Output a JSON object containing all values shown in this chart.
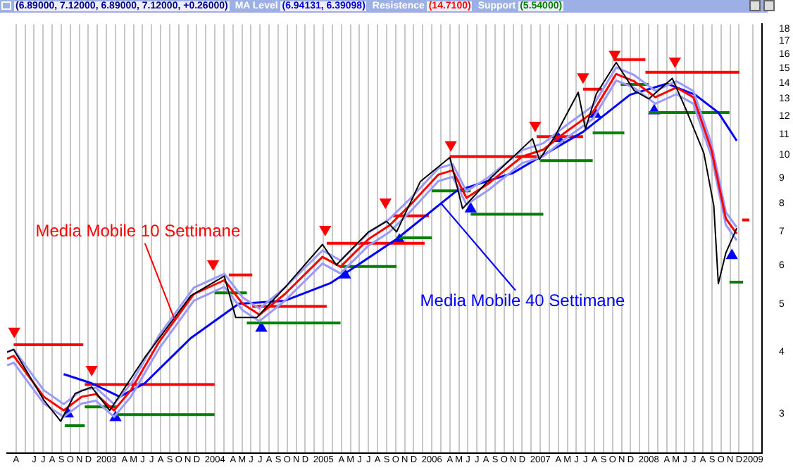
{
  "chart_data": {
    "type": "line",
    "log": "y",
    "grid": "x",
    "marker": "none",
    "xlim": [
      "2002-03-15",
      "2009-03-01"
    ],
    "ylim": [
      2.5,
      18.4
    ],
    "yticks": [
      3,
      4,
      5,
      6,
      7,
      8,
      9,
      10,
      11,
      12,
      13,
      14,
      15,
      16,
      17,
      18
    ],
    "xticks": [
      {
        "value": "2002-04-15",
        "label": "A"
      },
      {
        "value": "2002-05-15",
        "label": null
      },
      {
        "value": "2002-06-15",
        "label": "J"
      },
      {
        "value": "2002-07-15",
        "label": "J"
      },
      {
        "value": "2002-08-15",
        "label": "A"
      },
      {
        "value": "2002-09-15",
        "label": "S"
      },
      {
        "value": "2002-10-15",
        "label": "O"
      },
      {
        "value": "2002-11-15",
        "label": "N"
      },
      {
        "value": "2002-12-15",
        "label": "D"
      },
      {
        "value": "2003-01-15",
        "label": null
      },
      {
        "value": "2003-02-15",
        "label": "2003"
      },
      {
        "value": "2003-03-15",
        "label": null
      },
      {
        "value": "2003-04-15",
        "label": "A"
      },
      {
        "value": "2003-05-15",
        "label": "M"
      },
      {
        "value": "2003-06-15",
        "label": "J"
      },
      {
        "value": "2003-07-15",
        "label": "J"
      },
      {
        "value": "2003-08-15",
        "label": "A"
      },
      {
        "value": "2003-09-15",
        "label": "S"
      },
      {
        "value": "2003-10-15",
        "label": "O"
      },
      {
        "value": "2003-11-15",
        "label": "N"
      },
      {
        "value": "2003-12-15",
        "label": "D"
      },
      {
        "value": "2004-01-15",
        "label": null
      },
      {
        "value": "2004-02-15",
        "label": "2004"
      },
      {
        "value": "2004-03-15",
        "label": null
      },
      {
        "value": "2004-04-15",
        "label": "A"
      },
      {
        "value": "2004-05-15",
        "label": "M"
      },
      {
        "value": "2004-06-15",
        "label": "J"
      },
      {
        "value": "2004-07-15",
        "label": "J"
      },
      {
        "value": "2004-08-15",
        "label": "A"
      },
      {
        "value": "2004-09-15",
        "label": "S"
      },
      {
        "value": "2004-10-15",
        "label": "O"
      },
      {
        "value": "2004-11-15",
        "label": "N"
      },
      {
        "value": "2004-12-15",
        "label": "D"
      },
      {
        "value": "2005-01-15",
        "label": null
      },
      {
        "value": "2005-02-15",
        "label": "2005"
      },
      {
        "value": "2005-03-15",
        "label": null
      },
      {
        "value": "2005-04-15",
        "label": "A"
      },
      {
        "value": "2005-05-15",
        "label": "M"
      },
      {
        "value": "2005-06-15",
        "label": "J"
      },
      {
        "value": "2005-07-15",
        "label": "J"
      },
      {
        "value": "2005-08-15",
        "label": "A"
      },
      {
        "value": "2005-09-15",
        "label": "S"
      },
      {
        "value": "2005-10-15",
        "label": "O"
      },
      {
        "value": "2005-11-15",
        "label": "N"
      },
      {
        "value": "2005-12-15",
        "label": "D"
      },
      {
        "value": "2006-01-15",
        "label": null
      },
      {
        "value": "2006-02-15",
        "label": "2006"
      },
      {
        "value": "2006-03-15",
        "label": null
      },
      {
        "value": "2006-04-15",
        "label": "A"
      },
      {
        "value": "2006-05-15",
        "label": "M"
      },
      {
        "value": "2006-06-15",
        "label": "J"
      },
      {
        "value": "2006-07-15",
        "label": "J"
      },
      {
        "value": "2006-08-15",
        "label": "A"
      },
      {
        "value": "2006-09-15",
        "label": "S"
      },
      {
        "value": "2006-10-15",
        "label": "O"
      },
      {
        "value": "2006-11-15",
        "label": "N"
      },
      {
        "value": "2006-12-15",
        "label": "D"
      },
      {
        "value": "2007-01-15",
        "label": null
      },
      {
        "value": "2007-02-15",
        "label": "2007"
      },
      {
        "value": "2007-03-15",
        "label": null
      },
      {
        "value": "2007-04-15",
        "label": "A"
      },
      {
        "value": "2007-05-15",
        "label": "M"
      },
      {
        "value": "2007-06-15",
        "label": "J"
      },
      {
        "value": "2007-07-15",
        "label": "J"
      },
      {
        "value": "2007-08-15",
        "label": "A"
      },
      {
        "value": "2007-09-15",
        "label": "S"
      },
      {
        "value": "2007-10-15",
        "label": "O"
      },
      {
        "value": "2007-11-15",
        "label": "N"
      },
      {
        "value": "2007-12-15",
        "label": "D"
      },
      {
        "value": "2008-01-15",
        "label": null
      },
      {
        "value": "2008-02-15",
        "label": "2008"
      },
      {
        "value": "2008-03-15",
        "label": null
      },
      {
        "value": "2008-04-15",
        "label": "A"
      },
      {
        "value": "2008-05-15",
        "label": "M"
      },
      {
        "value": "2008-06-15",
        "label": "J"
      },
      {
        "value": "2008-07-15",
        "label": "J"
      },
      {
        "value": "2008-08-15",
        "label": "A"
      },
      {
        "value": "2008-09-15",
        "label": "S"
      },
      {
        "value": "2008-10-15",
        "label": "O"
      },
      {
        "value": "2008-11-15",
        "label": "N"
      },
      {
        "value": "2008-12-15",
        "label": "D"
      },
      {
        "value": "2009-02-01",
        "label": "2009"
      }
    ],
    "annotations": [
      "(6.89000, 7.12000, 6.89000, 7.12000, +0.26000)",
      "MA Level (6.94131, 6.39098)",
      "Resistence (14.7100)",
      "Support (5.54000)",
      {
        "text": "Media Mobile 10 Settimane",
        "x": "2003-10-01",
        "y": 4.66
      },
      {
        "text": "Media Mobile 40 Settimane",
        "x": "2006-03-15",
        "y": 8.0
      }
    ],
    "series": [
      {
        "color": "#000000",
        "x": [
          "2002-03-15",
          "2002-04-07",
          "2002-07-17",
          "2002-09-13",
          "2002-11-01",
          "2002-12-26",
          "2003-02-26",
          "2003-06-22",
          "2003-11-25",
          "2004-03-16",
          "2004-04-24",
          "2004-07-04",
          "2004-10-07",
          "2005-02-12",
          "2005-03-28",
          "2005-07-15",
          "2005-09-15",
          "2005-10-18",
          "2006-01-07",
          "2006-04-15",
          "2006-05-27",
          "2006-09-01",
          "2007-01-19",
          "2007-02-12",
          "2007-04-03",
          "2007-06-21",
          "2007-07-15",
          "2007-08-21",
          "2007-10-27",
          "2007-12-27",
          "2008-02-15",
          "2008-05-03",
          "2008-06-18",
          "2008-08-18",
          "2008-09-21",
          "2008-10-06",
          "2008-11-01",
          "2008-12-07"
        ],
        "values": [
          4.0,
          4.05,
          3.2,
          2.9,
          3.3,
          3.4,
          3.05,
          3.9,
          5.2,
          5.7,
          4.7,
          4.7,
          5.4,
          6.6,
          6.0,
          7.0,
          7.35,
          7.0,
          8.85,
          9.9,
          7.8,
          9.0,
          10.8,
          9.8,
          10.9,
          13.4,
          11.3,
          13.3,
          15.4,
          13.5,
          13.0,
          14.3,
          12.4,
          10.1,
          7.9,
          5.5,
          6.35,
          7.12
        ]
      },
      {
        "color": "#ff0000",
        "x": [
          "2002-03-15",
          "2002-04-07",
          "2002-07-17",
          "2002-09-23",
          "2002-11-23",
          "2003-01-10",
          "2003-03-10",
          "2003-05-06",
          "2003-08-09",
          "2003-12-05",
          "2004-03-16",
          "2004-05-17",
          "2004-07-13",
          "2004-10-07",
          "2005-02-12",
          "2005-04-12",
          "2005-07-15",
          "2005-09-24",
          "2005-12-04",
          "2006-03-07",
          "2006-04-24",
          "2006-06-10",
          "2006-08-20",
          "2006-12-15",
          "2007-02-25",
          "2007-05-06",
          "2007-08-09",
          "2007-10-27",
          "2007-12-27",
          "2008-03-07",
          "2008-05-17",
          "2008-07-13",
          "2008-09-13",
          "2008-11-01",
          "2008-12-07"
        ],
        "values": [
          3.88,
          3.93,
          3.25,
          3.05,
          3.25,
          3.29,
          3.05,
          3.35,
          4.19,
          5.24,
          5.59,
          5.01,
          4.76,
          5.24,
          6.23,
          5.95,
          6.77,
          7.21,
          7.94,
          9.14,
          9.32,
          8.2,
          8.74,
          9.94,
          10.26,
          11.1,
          12.2,
          14.6,
          14.1,
          13.1,
          13.7,
          13.1,
          10.26,
          7.45,
          6.94
        ]
      },
      {
        "color": "#9999ff",
        "x": [
          "2002-03-15",
          "2002-04-07",
          "2002-07-17",
          "2002-09-23",
          "2002-11-23",
          "2003-01-10",
          "2003-03-10",
          "2003-05-06",
          "2003-08-09",
          "2003-12-05",
          "2004-03-16",
          "2004-05-17",
          "2004-07-13",
          "2004-10-07",
          "2005-02-12",
          "2005-04-12",
          "2005-07-15",
          "2005-09-24",
          "2005-12-04",
          "2006-03-07",
          "2006-04-24",
          "2006-06-10",
          "2006-08-20",
          "2006-12-15",
          "2007-02-25",
          "2007-05-06",
          "2007-08-09",
          "2007-10-27",
          "2007-12-27",
          "2008-03-07",
          "2008-05-17",
          "2008-07-13",
          "2008-09-13",
          "2008-11-01",
          "2008-12-07"
        ],
        "values": [
          4.0,
          4.05,
          3.35,
          3.14,
          3.35,
          3.39,
          3.14,
          3.45,
          4.32,
          5.4,
          5.76,
          5.16,
          4.9,
          5.4,
          6.42,
          6.13,
          6.97,
          7.43,
          8.18,
          9.41,
          9.6,
          8.45,
          9.0,
          10.24,
          10.57,
          11.43,
          12.57,
          15.04,
          14.52,
          13.49,
          14.11,
          13.49,
          10.57,
          7.67,
          7.15
        ]
      },
      {
        "color": "#9999ff",
        "x": [
          "2002-03-15",
          "2002-04-07",
          "2002-07-17",
          "2002-09-23",
          "2002-11-23",
          "2003-01-10",
          "2003-03-10",
          "2003-05-06",
          "2003-08-09",
          "2003-12-05",
          "2004-03-16",
          "2004-05-17",
          "2004-07-13",
          "2004-10-07",
          "2005-02-12",
          "2005-04-12",
          "2005-07-15",
          "2005-09-24",
          "2005-12-04",
          "2006-03-07",
          "2006-04-24",
          "2006-06-10",
          "2006-08-20",
          "2006-12-15",
          "2007-02-25",
          "2007-05-06",
          "2007-08-09",
          "2007-10-27",
          "2007-12-27",
          "2008-03-07",
          "2008-05-17",
          "2008-07-13",
          "2008-09-13",
          "2008-11-01",
          "2008-12-07"
        ],
        "values": [
          3.76,
          3.81,
          3.15,
          2.96,
          3.15,
          3.19,
          2.96,
          3.25,
          4.06,
          5.08,
          5.42,
          4.86,
          4.62,
          5.08,
          6.04,
          5.77,
          6.57,
          6.99,
          7.7,
          8.87,
          9.04,
          7.95,
          8.48,
          9.64,
          9.95,
          10.77,
          11.83,
          14.16,
          13.68,
          12.71,
          13.29,
          12.71,
          9.95,
          7.23,
          6.73
        ]
      },
      {
        "color": "#0000ff",
        "x": [
          "2002-09-23",
          "2002-12-26",
          "2003-03-29",
          "2003-06-22",
          "2003-11-25",
          "2004-05-04",
          "2004-10-07",
          "2005-03-10",
          "2005-10-18",
          "2006-05-07",
          "2006-11-13",
          "2007-07-07",
          "2007-12-13",
          "2008-04-15",
          "2008-07-19",
          "2008-10-06",
          "2008-12-07"
        ],
        "values": [
          3.61,
          3.46,
          3.25,
          3.46,
          4.27,
          5.01,
          5.08,
          5.52,
          6.77,
          8.47,
          9.2,
          11.15,
          13.25,
          13.95,
          13.25,
          12.2,
          10.7
        ]
      },
      {
        "color": "#ff0000",
        "x": [
          "2002-04-07",
          "2002-11-28"
        ],
        "values": [
          4.14,
          4.14
        ]
      },
      {
        "color": "#ff0000",
        "x": [
          "2002-12-03",
          "2004-02-14"
        ],
        "values": [
          3.44,
          3.44
        ]
      },
      {
        "color": "#ff0000",
        "x": [
          "2004-04-01",
          "2004-06-19"
        ],
        "values": [
          5.73,
          5.73
        ]
      },
      {
        "color": "#ff0000",
        "x": [
          "2004-06-19",
          "2005-02-26"
        ],
        "values": [
          4.95,
          4.95
        ]
      },
      {
        "color": "#ff0000",
        "x": [
          "2005-02-26",
          "2006-01-21"
        ],
        "values": [
          6.64,
          6.64
        ]
      },
      {
        "color": "#ff0000",
        "x": [
          "2005-10-04",
          "2006-02-05"
        ],
        "values": [
          7.54,
          7.54
        ]
      },
      {
        "color": "#ff0000",
        "x": [
          "2006-04-15",
          "2007-02-03"
        ],
        "values": [
          9.94,
          9.94
        ]
      },
      {
        "color": "#ff0000",
        "x": [
          "2007-02-03",
          "2007-07-07"
        ],
        "values": [
          10.9,
          10.9
        ]
      },
      {
        "color": "#ff0000",
        "x": [
          "2007-07-07",
          "2007-09-10"
        ],
        "values": [
          13.6,
          13.6
        ]
      },
      {
        "color": "#ff0000",
        "x": [
          "2007-10-18",
          "2008-02-04"
        ],
        "values": [
          15.6,
          15.6
        ]
      },
      {
        "color": "#ff0000",
        "x": [
          "2008-02-04",
          "2008-12-16"
        ],
        "values": [
          14.71,
          14.71
        ]
      },
      {
        "color": "#ff0000",
        "x": [
          "2008-12-25",
          "2009-01-19"
        ],
        "values": [
          7.4,
          7.4
        ]
      },
      {
        "color": "#008000",
        "x": [
          "2002-09-27",
          "2002-12-03"
        ],
        "values": [
          2.84,
          2.84
        ]
      },
      {
        "color": "#008000",
        "x": [
          "2002-12-03",
          "2003-03-19"
        ],
        "values": [
          3.1,
          3.1
        ]
      },
      {
        "color": "#008000",
        "x": [
          "2003-03-19",
          "2004-02-14"
        ],
        "values": [
          2.99,
          2.99
        ]
      },
      {
        "color": "#008000",
        "x": [
          "2004-02-14",
          "2004-06-01"
        ],
        "values": [
          5.27,
          5.27
        ]
      },
      {
        "color": "#008000",
        "x": [
          "2004-06-01",
          "2005-04-12"
        ],
        "values": [
          4.58,
          4.58
        ]
      },
      {
        "color": "#008000",
        "x": [
          "2005-04-12",
          "2005-10-18"
        ],
        "values": [
          5.96,
          5.96
        ]
      },
      {
        "color": "#008000",
        "x": [
          "2005-10-18",
          "2006-02-15"
        ],
        "values": [
          6.81,
          6.81
        ]
      },
      {
        "color": "#008000",
        "x": [
          "2006-02-15",
          "2006-06-24"
        ],
        "values": [
          8.47,
          8.47
        ]
      },
      {
        "color": "#008000",
        "x": [
          "2006-06-24",
          "2007-02-25"
        ],
        "values": [
          7.6,
          7.6
        ]
      },
      {
        "color": "#008000",
        "x": [
          "2007-02-15",
          "2007-08-09"
        ],
        "values": [
          9.75,
          9.75
        ]
      },
      {
        "color": "#008000",
        "x": [
          "2007-08-09",
          "2007-11-24"
        ],
        "values": [
          11.1,
          11.1
        ]
      },
      {
        "color": "#008000",
        "x": [
          "2007-11-12",
          "2008-02-15"
        ],
        "values": [
          13.9,
          13.9
        ]
      },
      {
        "color": "#008000",
        "x": [
          "2008-02-15",
          "2008-11-13"
        ],
        "values": [
          12.2,
          12.2
        ]
      },
      {
        "color": "#008000",
        "x": [
          "2008-11-13",
          "2008-12-28"
        ],
        "values": [
          5.54,
          5.54
        ]
      },
      {
        "type": "scatter",
        "marker": "triangle",
        "color": "#ff0000",
        "x": [
          "2002-04-09",
          "2002-12-26",
          "2004-02-09",
          "2005-02-21",
          "2005-09-11",
          "2006-04-18",
          "2007-01-28",
          "2007-07-07",
          "2007-10-22",
          "2008-05-12"
        ],
        "values": [
          4.41,
          3.69,
          6.03,
          7.08,
          8.04,
          10.5,
          11.5,
          14.4,
          16.0,
          15.5
        ]
      },
      {
        "type": "scatter",
        "marker": "triangle",
        "color": "#0000ff",
        "x": [
          "2002-10-07",
          "2003-03-15",
          "2004-07-19",
          "2005-04-27",
          "2005-10-27",
          "2006-06-24",
          "2007-04-15",
          "2007-08-18",
          "2008-03-03",
          "2008-11-21"
        ],
        "values": [
          3.0,
          2.95,
          4.47,
          5.73,
          6.73,
          7.79,
          10.8,
          12.1,
          12.3,
          6.27
        ]
      }
    ]
  }
}
